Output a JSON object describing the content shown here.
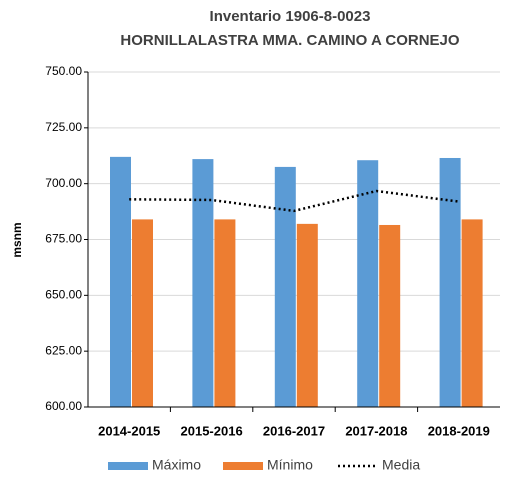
{
  "chart_data": {
    "type": "bar",
    "title": [
      "Inventario 1906-8-0023",
      "HORNILLALASTRA MMA. CAMINO A CORNEJO"
    ],
    "ylabel": "msnm",
    "categories": [
      "2014-2015",
      "2015-2016",
      "2016-2017",
      "2017-2018",
      "2018-2019"
    ],
    "series": [
      {
        "name": "Máximo",
        "color": "#5b9bd5",
        "type": "bar",
        "values": [
          712,
          711,
          707.5,
          710.5,
          711.5
        ]
      },
      {
        "name": "Mínimo",
        "color": "#ed7d31",
        "type": "bar",
        "values": [
          684,
          684,
          682,
          681.5,
          684
        ]
      },
      {
        "name": "Media",
        "color": "#000000",
        "type": "line",
        "values": [
          693,
          692.7,
          687.8,
          696.7,
          692
        ]
      }
    ],
    "ylim": [
      600,
      750
    ],
    "yticks": [
      {
        "value": 600,
        "label": "600.00"
      },
      {
        "value": 625,
        "label": "625.00"
      },
      {
        "value": 650,
        "label": "650.00"
      },
      {
        "value": 675,
        "label": "675.00"
      },
      {
        "value": 700,
        "label": "700.00"
      },
      {
        "value": 725,
        "label": "725.00"
      },
      {
        "value": 750,
        "label": "750.00"
      }
    ],
    "grid": true,
    "legend": "bottom"
  }
}
